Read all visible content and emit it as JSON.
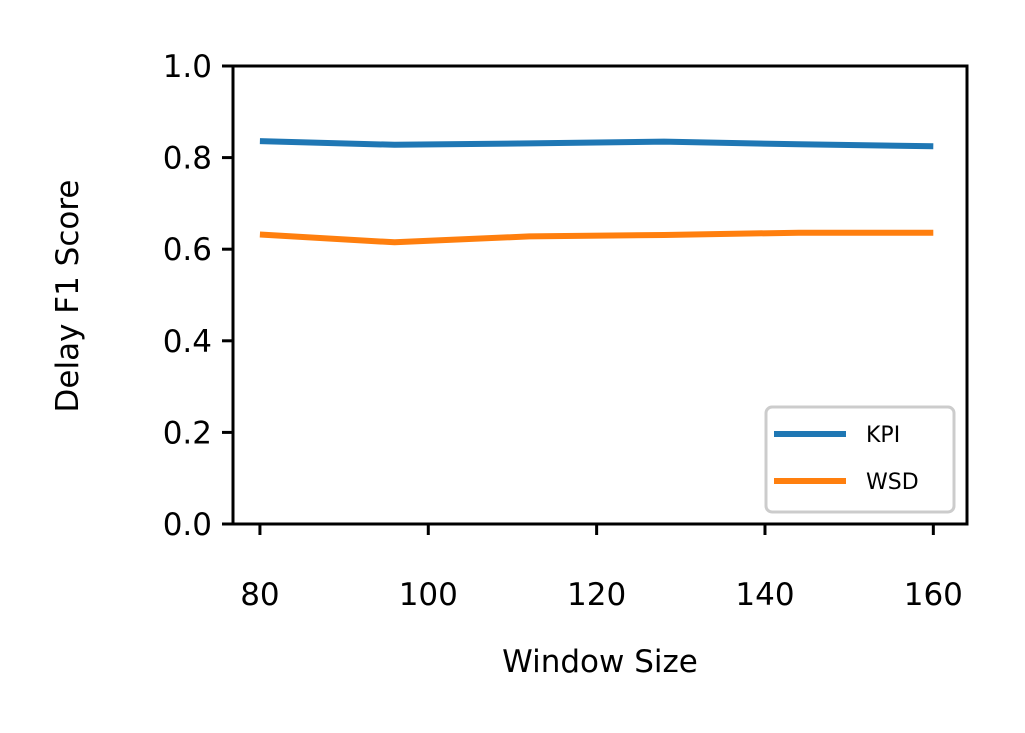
{
  "chart_data": {
    "type": "line",
    "title": "",
    "xlabel": "Window Size",
    "ylabel": "Delay F1 Score",
    "xlim": [
      76.8,
      164.0
    ],
    "ylim": [
      0.0,
      1.0
    ],
    "xticks": [
      80,
      100,
      120,
      140,
      160
    ],
    "yticks": [
      0.0,
      0.2,
      0.4,
      0.6,
      0.8,
      1.0
    ],
    "xtick_labels": [
      "80",
      "100",
      "120",
      "140",
      "160"
    ],
    "ytick_labels": [
      "0.0",
      "0.2",
      "0.4",
      "0.6",
      "0.8",
      "1.0"
    ],
    "grid": false,
    "legend_position": "lower-right",
    "series": [
      {
        "name": "KPI",
        "color": "#1f77b4",
        "x": [
          80,
          96,
          112,
          128,
          144,
          160
        ],
        "y": [
          0.836,
          0.828,
          0.831,
          0.835,
          0.829,
          0.825
        ]
      },
      {
        "name": "WSD",
        "color": "#ff7f0e",
        "x": [
          80,
          96,
          112,
          128,
          144,
          160
        ],
        "y": [
          0.632,
          0.615,
          0.628,
          0.631,
          0.636,
          0.636
        ]
      }
    ]
  }
}
